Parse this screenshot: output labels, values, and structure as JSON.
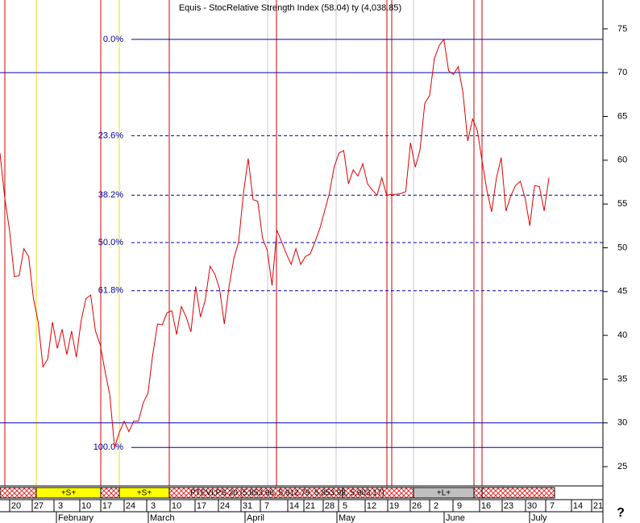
{
  "chart_data": {
    "type": "line",
    "title": "Equis - StocRelative Strength Index (58.04) ty (4,038.85)",
    "series": [
      {
        "name": "Price",
        "color": "#e00000",
        "values": [
          60.8,
          55.7,
          52.0,
          46.7,
          46.8,
          49.9,
          49.0,
          44.2,
          41.5,
          36.4,
          37.3,
          41.5,
          38.5,
          40.7,
          37.8,
          40.5,
          37.5,
          41.7,
          44.2,
          44.6,
          40.5,
          38.9,
          35.9,
          33.2,
          27.2,
          28.9,
          30.2,
          29.0,
          30.2,
          30.2,
          32.3,
          33.4,
          37.8,
          41.3,
          41.2,
          42.6,
          42.8,
          40.1,
          43.3,
          42.1,
          40.4,
          45.6,
          42.1,
          44.0,
          47.9,
          47.0,
          45.3,
          41.3,
          45.6,
          48.8,
          50.7,
          56.2,
          60.2,
          55.5,
          55.3,
          51.1,
          49.7,
          45.7,
          52.0,
          50.7,
          49.3,
          48.1,
          49.9,
          48.1,
          49.0,
          49.3,
          50.7,
          52.2,
          54.2,
          56.2,
          59.2,
          60.8,
          61.1,
          57.3,
          58.9,
          58.2,
          59.6,
          57.3,
          56.6,
          56.0,
          58.0,
          56.0,
          56.1,
          56.1,
          56.2,
          56.4,
          62.0,
          59.2,
          61.2,
          66.5,
          67.4,
          71.6,
          73.1,
          73.8,
          70.2,
          69.8,
          70.7,
          67.7,
          62.2,
          64.7,
          63.4,
          59.9,
          56.6,
          54.1,
          58.0,
          60.3,
          54.2,
          55.9,
          57.1,
          57.6,
          55.7,
          52.5,
          57.1,
          57.0,
          54.2,
          58.0
        ]
      }
    ],
    "fib_levels": [
      {
        "label": "0.0%",
        "value": 73.8
      },
      {
        "label": "23.6%",
        "value": 62.8
      },
      {
        "label": "38.2%",
        "value": 56.0
      },
      {
        "label": "50.0%",
        "value": 50.6
      },
      {
        "label": "61.8%",
        "value": 45.1
      },
      {
        "label": "100.0%",
        "value": 27.2
      }
    ],
    "hlines": [
      70,
      30
    ],
    "ylim": [
      22.8,
      78.3
    ],
    "yticks": [
      25,
      30,
      35,
      40,
      45,
      50,
      55,
      60,
      65,
      70,
      75
    ],
    "x_labels": [
      "20",
      "27",
      "3",
      "10",
      "17",
      "24",
      "3",
      "10",
      "17",
      "24",
      "31",
      "7",
      "14",
      "21",
      "28",
      "5",
      "12",
      "19",
      "26",
      "2",
      "9",
      "16",
      "23",
      "30",
      "7",
      "14",
      "21"
    ],
    "months": [
      "February",
      "March",
      "April",
      "May",
      "June",
      "July"
    ],
    "strip_labels": [
      "+S+",
      "+S+",
      "PTEVLPS 20 (5,853.96, 5,912.79, 5,853.93, 5,903.17)",
      "+L+"
    ],
    "help": "?"
  }
}
